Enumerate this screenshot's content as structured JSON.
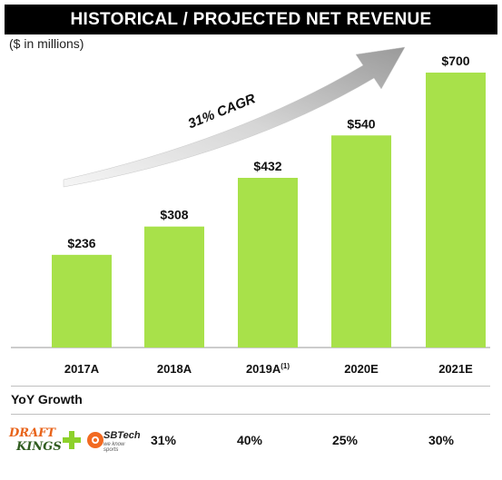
{
  "header": {
    "title": "HISTORICAL / PROJECTED NET REVENUE",
    "subtitle": "($ in millions)"
  },
  "chart_data": {
    "type": "bar",
    "categories": [
      "2017A",
      "2018A",
      "2019A",
      "2020E",
      "2021E"
    ],
    "category_superscripts": [
      "",
      "",
      "(1)",
      "",
      ""
    ],
    "values": [
      236,
      308,
      432,
      540,
      700
    ],
    "value_labels": [
      "$236",
      "$308",
      "$432",
      "$540",
      "$700"
    ],
    "title": "HISTORICAL / PROJECTED NET REVENUE",
    "ylabel": "($ in millions)",
    "ylim": [
      0,
      700
    ],
    "grid": false,
    "bar_color": "#a8e14a",
    "annotation": "31% CAGR"
  },
  "yoy": {
    "label": "YoY Growth",
    "values": [
      "31%",
      "40%",
      "25%",
      "30%"
    ]
  },
  "logos": {
    "draftkings_top": "DRAFT",
    "draftkings_bottom": "KINGS",
    "sbtech_name": "SBTech",
    "sbtech_tagline": "we know sports",
    "plus_color": "#8dd12b",
    "draftkings_orange": "#e8641b",
    "draftkings_green": "#2f5c1f",
    "sbtech_orange": "#f26a21"
  }
}
